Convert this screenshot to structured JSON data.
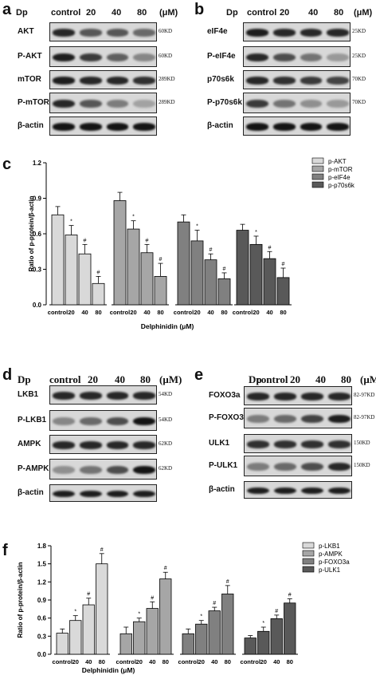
{
  "panels": {
    "a": {
      "letter": "a",
      "header": [
        "Dp",
        "control",
        "20",
        "40",
        "80",
        "(μM)"
      ],
      "blots": [
        {
          "label": "AKT",
          "kd": "60KD",
          "intensity": [
            0.85,
            0.6,
            0.6,
            0.5
          ]
        },
        {
          "label": "P-AKT",
          "kd": "60KD",
          "intensity": [
            0.9,
            0.75,
            0.55,
            0.35
          ]
        },
        {
          "label": "mTOR",
          "kd": "289KD",
          "intensity": [
            0.9,
            0.85,
            0.85,
            0.8
          ]
        },
        {
          "label": "P-mTOR",
          "kd": "289KD",
          "intensity": [
            0.85,
            0.6,
            0.4,
            0.2
          ]
        },
        {
          "label": "β-actin",
          "kd": "",
          "intensity": [
            0.95,
            0.95,
            0.95,
            0.95
          ]
        }
      ]
    },
    "b": {
      "letter": "b",
      "header": [
        "Dp",
        "control",
        "20",
        "40",
        "80",
        "(μM)"
      ],
      "blots": [
        {
          "label": "eIF4e",
          "kd": "25KD",
          "intensity": [
            0.9,
            0.85,
            0.85,
            0.85
          ]
        },
        {
          "label": "P-eIF4e",
          "kd": "25KD",
          "intensity": [
            0.85,
            0.65,
            0.45,
            0.25
          ]
        },
        {
          "label": "p70s6k",
          "kd": "70KD",
          "intensity": [
            0.85,
            0.8,
            0.75,
            0.7
          ]
        },
        {
          "label": "P-p70s6k",
          "kd": "70KD",
          "intensity": [
            0.75,
            0.45,
            0.3,
            0.25
          ]
        },
        {
          "label": "β-actin",
          "kd": "",
          "intensity": [
            0.95,
            0.95,
            0.95,
            0.95
          ]
        }
      ]
    },
    "d": {
      "letter": "d",
      "header": [
        "Dp",
        "control",
        "20",
        "40",
        "80",
        "(μM)"
      ],
      "blots": [
        {
          "label": "LKB1",
          "kd": "54KD",
          "intensity": [
            0.85,
            0.85,
            0.85,
            0.85
          ]
        },
        {
          "label": "P-LKB1",
          "kd": "54KD",
          "intensity": [
            0.35,
            0.5,
            0.65,
            0.95
          ]
        },
        {
          "label": "AMPK",
          "kd": "62KD",
          "intensity": [
            0.85,
            0.85,
            0.85,
            0.85
          ]
        },
        {
          "label": "P-AMPK",
          "kd": "62KD",
          "intensity": [
            0.3,
            0.45,
            0.65,
            0.95
          ]
        },
        {
          "label": "β-actin",
          "kd": "",
          "intensity": [
            0.9,
            0.9,
            0.9,
            0.9
          ]
        }
      ]
    },
    "e": {
      "letter": "e",
      "header": [
        "Dp",
        "control",
        "20",
        "40",
        "80",
        "(μM)"
      ],
      "blots": [
        {
          "label": "FOXO3a",
          "kd": "82-97KD",
          "intensity": [
            0.85,
            0.85,
            0.85,
            0.85
          ]
        },
        {
          "label": "P-FOXO3a",
          "kd": "82-97KD",
          "intensity": [
            0.4,
            0.5,
            0.7,
            0.9
          ]
        },
        {
          "label": "ULK1",
          "kd": "150KD",
          "intensity": [
            0.8,
            0.8,
            0.8,
            0.8
          ]
        },
        {
          "label": "P-ULK1",
          "kd": "150KD",
          "intensity": [
            0.4,
            0.5,
            0.65,
            0.85
          ]
        },
        {
          "label": "β-actin",
          "kd": "",
          "intensity": [
            0.9,
            0.9,
            0.9,
            0.9
          ]
        }
      ]
    }
  },
  "chart_data": [
    {
      "panel": "c",
      "type": "bar",
      "ylabel": "Ratio of p-protein/β-actin",
      "xlabel": "Delphinidin (μM)",
      "ylim": [
        0,
        1.2
      ],
      "yticks": [
        "0.0",
        "0.3",
        "0.6",
        "0.9",
        "1.2"
      ],
      "categories": [
        "control",
        "20",
        "40",
        "80"
      ],
      "series": [
        {
          "name": "p-AKT",
          "color": "#d9d9d9",
          "values": [
            0.76,
            0.59,
            0.43,
            0.18
          ],
          "errors": [
            0.07,
            0.08,
            0.08,
            0.06
          ],
          "marks": [
            "",
            "*",
            "#",
            "#"
          ]
        },
        {
          "name": "p-mTOR",
          "color": "#a6a6a6",
          "values": [
            0.88,
            0.64,
            0.44,
            0.24
          ],
          "errors": [
            0.07,
            0.07,
            0.07,
            0.11
          ],
          "marks": [
            "",
            "*",
            "#",
            "#"
          ]
        },
        {
          "name": "p-eIF4e",
          "color": "#808080",
          "values": [
            0.7,
            0.54,
            0.38,
            0.22
          ],
          "errors": [
            0.06,
            0.09,
            0.05,
            0.05
          ],
          "marks": [
            "",
            "*",
            "#",
            "#"
          ]
        },
        {
          "name": "p-p70s6k",
          "color": "#595959",
          "values": [
            0.63,
            0.51,
            0.39,
            0.23
          ],
          "errors": [
            0.05,
            0.07,
            0.06,
            0.08
          ],
          "marks": [
            "",
            "*",
            "#",
            "#"
          ]
        }
      ],
      "legend_position": "top-right"
    },
    {
      "panel": "f",
      "type": "bar",
      "ylabel": "Ratio of p-protein/β-actin",
      "xlabel": "Delphinidin (μM)",
      "ylim": [
        0,
        1.8
      ],
      "yticks": [
        "0.0",
        "0.3",
        "0.6",
        "0.9",
        "1.2",
        "1.5",
        "1.8"
      ],
      "categories": [
        "control",
        "20",
        "40",
        "80"
      ],
      "series": [
        {
          "name": "p-LKB1",
          "color": "#d9d9d9",
          "values": [
            0.35,
            0.56,
            0.82,
            1.5
          ],
          "errors": [
            0.07,
            0.08,
            0.11,
            0.17
          ],
          "marks": [
            "",
            "*",
            "#",
            "#"
          ]
        },
        {
          "name": "p-AMPK",
          "color": "#a6a6a6",
          "values": [
            0.34,
            0.54,
            0.76,
            1.25
          ],
          "errors": [
            0.11,
            0.06,
            0.11,
            0.11
          ],
          "marks": [
            "",
            "*",
            "#",
            "#"
          ]
        },
        {
          "name": "p-FOXO3a",
          "color": "#808080",
          "values": [
            0.34,
            0.5,
            0.72,
            1.0
          ],
          "errors": [
            0.08,
            0.06,
            0.06,
            0.14
          ],
          "marks": [
            "",
            "*",
            "#",
            "#"
          ]
        },
        {
          "name": "p-ULK1",
          "color": "#595959",
          "values": [
            0.27,
            0.38,
            0.59,
            0.85
          ],
          "errors": [
            0.04,
            0.07,
            0.06,
            0.07
          ],
          "marks": [
            "",
            "*",
            "#",
            "#"
          ]
        }
      ],
      "legend_position": "top-right"
    }
  ]
}
